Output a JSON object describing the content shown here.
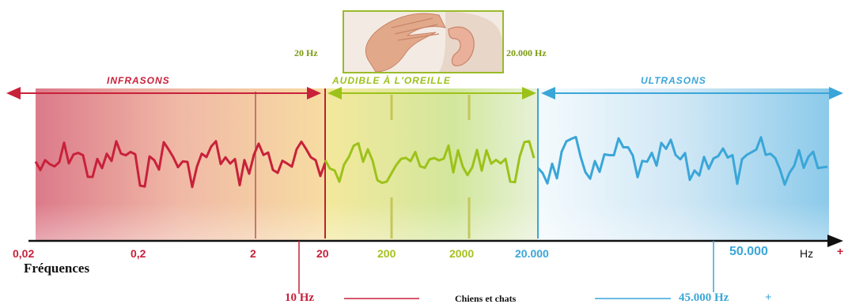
{
  "bands": {
    "infrasons": "INFRASONS",
    "audible": "AUDIBLE À L'OREILLE",
    "ultrasons": "ULTRASONS"
  },
  "hearing_range": {
    "low": "20 Hz",
    "high": "20.000 Hz"
  },
  "axis": {
    "title": "Fréquences",
    "unit": "Hz",
    "plus": "+",
    "ticks": [
      "0,02",
      "0,2",
      "2",
      "20",
      "200",
      "2000",
      "20.000",
      "50.000"
    ]
  },
  "footer": {
    "low_limit": "10 Hz",
    "animals": "Chiens et chats",
    "high_limit": "45.000 Hz",
    "plus": "+"
  },
  "colors": {
    "infra": "#c8213a",
    "audible": "#9cc21a",
    "ultra": "#3aa6d8",
    "axis": "#111111"
  },
  "icons": {
    "ear_image": "hand-cupping-ear-photo"
  }
}
